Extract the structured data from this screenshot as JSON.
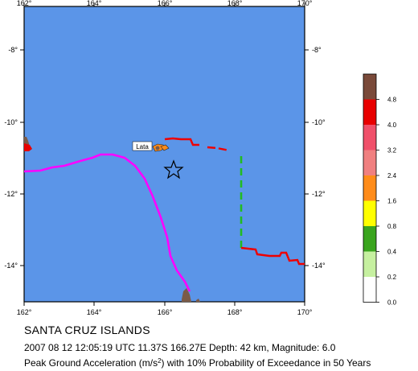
{
  "map": {
    "lon_ticks": [
      "162°",
      "164°",
      "166°",
      "168°",
      "170°"
    ],
    "lat_ticks": [
      "-8°",
      "-10°",
      "-12°",
      "-14°"
    ],
    "place_label": "Lata",
    "epicenter_icon": "star-icon",
    "colors": {
      "ocean": "#5b95e8",
      "land": "#7a5a48",
      "boundary_magenta": "#ff00ff",
      "boundary_red": "#ee0000",
      "boundary_green": "#22bb22"
    }
  },
  "color_scale": {
    "labels": [
      "4.8",
      "4.0",
      "3.2",
      "2.4",
      "1.6",
      "0.8",
      "0.4",
      "0.2",
      "0.0"
    ],
    "colors": [
      "#7a4a3a",
      "#e80000",
      "#f0506a",
      "#f08080",
      "#ff8c1a",
      "#ffff00",
      "#3aa51e",
      "#c6f0a0",
      "#ffffff"
    ]
  },
  "caption": {
    "region": "SANTA CRUZ ISLANDS",
    "event": "2007 08 12 12:05:19 UTC 11.37S 166.27E Depth: 42 km, Magnitude: 6.0",
    "pga_pre": "Peak Ground Acceleration (m/s",
    "pga_sup": "2",
    "pga_post": ") with 10% Probability of Exceedance in 50 Years"
  }
}
